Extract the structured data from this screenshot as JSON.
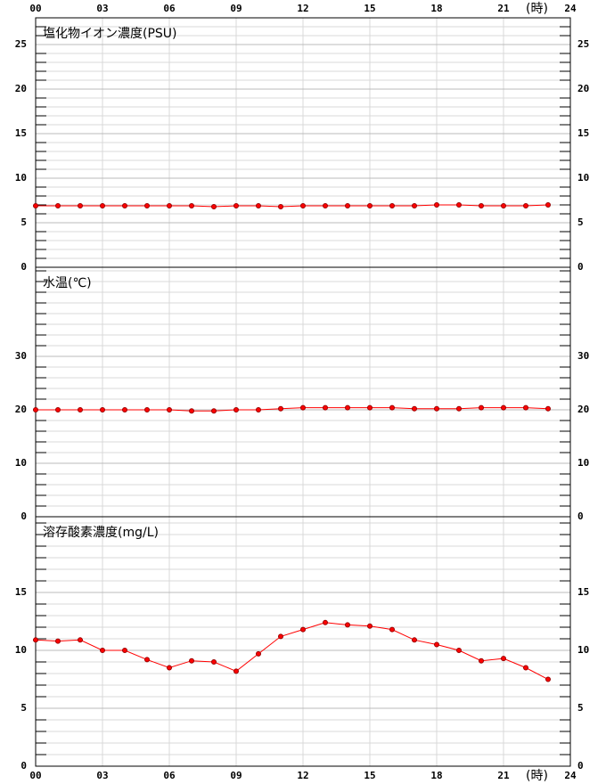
{
  "chart_data": [
    {
      "type": "line",
      "title": "塩化物イオン濃度(PSU)",
      "x_label": "(時)",
      "x": [
        0,
        1,
        2,
        3,
        4,
        5,
        6,
        7,
        8,
        9,
        10,
        11,
        12,
        13,
        14,
        15,
        16,
        17,
        18,
        19,
        20,
        21,
        22,
        23
      ],
      "values": [
        6.9,
        6.9,
        6.9,
        6.9,
        6.9,
        6.9,
        6.9,
        6.9,
        6.8,
        6.9,
        6.9,
        6.8,
        6.9,
        6.9,
        6.9,
        6.9,
        6.9,
        6.9,
        7.0,
        7.0,
        6.9,
        6.9,
        6.9,
        7.0
      ],
      "color": "#ff0000",
      "xlim": [
        0,
        24
      ],
      "xticks": [
        {
          "value": 0,
          "label": "00"
        },
        {
          "value": 3,
          "label": "03"
        },
        {
          "value": 6,
          "label": "06"
        },
        {
          "value": 9,
          "label": "09"
        },
        12,
        15,
        18,
        21,
        24
      ],
      "ylim": [
        0,
        28
      ],
      "yticks": [
        0,
        5,
        10,
        15,
        20,
        25
      ],
      "grid": true
    },
    {
      "type": "line",
      "title": "水温(℃)",
      "x": [
        0,
        1,
        2,
        3,
        4,
        5,
        6,
        7,
        8,
        9,
        10,
        11,
        12,
        13,
        14,
        15,
        16,
        17,
        18,
        19,
        20,
        21,
        22,
        23
      ],
      "values": [
        20.0,
        20.0,
        20.0,
        20.0,
        20.0,
        20.0,
        20.0,
        19.8,
        19.8,
        20.0,
        20.0,
        20.2,
        20.4,
        20.4,
        20.4,
        20.4,
        20.4,
        20.2,
        20.2,
        20.2,
        20.4,
        20.4,
        20.4,
        20.2
      ],
      "color": "#ff0000",
      "xlim": [
        0,
        24
      ],
      "xticks": [
        {
          "value": 0,
          "label": "00"
        },
        {
          "value": 3,
          "label": "03"
        },
        {
          "value": 6,
          "label": "06"
        },
        {
          "value": 9,
          "label": "09"
        },
        12,
        15,
        18,
        21,
        24
      ],
      "ylim": [
        0,
        46.67
      ],
      "yticks": [
        0,
        10,
        20,
        30
      ],
      "grid": true
    },
    {
      "type": "line",
      "title": "溶存酸素濃度(mg/L)",
      "x_label": "(時)",
      "x": [
        0,
        1,
        2,
        3,
        4,
        5,
        6,
        7,
        8,
        9,
        10,
        11,
        12,
        13,
        14,
        15,
        16,
        17,
        18,
        19,
        20,
        21,
        22,
        23
      ],
      "values": [
        10.9,
        10.8,
        10.9,
        10.0,
        10.0,
        9.2,
        8.5,
        9.1,
        9.0,
        8.2,
        9.7,
        11.2,
        11.8,
        12.4,
        12.2,
        12.1,
        11.8,
        10.9,
        10.5,
        10.0,
        9.1,
        9.3,
        8.5,
        7.5
      ],
      "color": "#ff0000",
      "xlim": [
        0,
        24
      ],
      "xticks": [
        {
          "value": 0,
          "label": "00"
        },
        {
          "value": 3,
          "label": "03"
        },
        {
          "value": 6,
          "label": "06"
        },
        {
          "value": 9,
          "label": "09"
        },
        12,
        15,
        18,
        21,
        24
      ],
      "ylim": [
        0,
        21.54
      ],
      "yticks": [
        0,
        5,
        10,
        15
      ],
      "grid": true
    }
  ]
}
